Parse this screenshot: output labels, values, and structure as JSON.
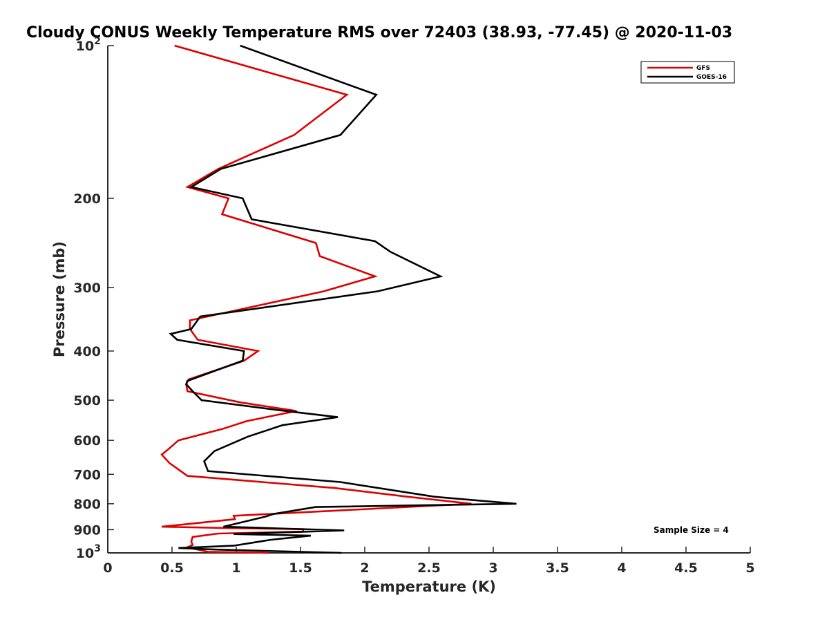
{
  "chart_data": {
    "type": "line",
    "title": "Cloudy CONUS Weekly Temperature RMS over 72403 (38.93, -77.45) @ 2020-11-03",
    "xlabel": "Temperature (K)",
    "ylabel": "Pressure (mb)",
    "xlim": [
      0,
      5
    ],
    "ylim": [
      100,
      1000
    ],
    "yscale": "log",
    "y_reversed": true,
    "x_ticks": [
      0,
      0.5,
      1,
      1.5,
      2,
      2.5,
      3,
      3.5,
      4,
      4.5,
      5
    ],
    "x_tick_labels": [
      "0",
      "0.5",
      "1",
      "1.5",
      "2",
      "2.5",
      "3",
      "3.5",
      "4",
      "4.5",
      "5"
    ],
    "y_ticks": [
      100,
      200,
      300,
      400,
      500,
      600,
      700,
      800,
      900,
      1000
    ],
    "y_tick_labels": [
      {
        "base": "10",
        "exp": "2"
      },
      {
        "base": "200",
        "exp": ""
      },
      {
        "base": "300",
        "exp": ""
      },
      {
        "base": "400",
        "exp": ""
      },
      {
        "base": "500",
        "exp": ""
      },
      {
        "base": "600",
        "exp": ""
      },
      {
        "base": "700",
        "exp": ""
      },
      {
        "base": "800",
        "exp": ""
      },
      {
        "base": "900",
        "exp": ""
      },
      {
        "base": "10",
        "exp": "3"
      }
    ],
    "grid": false,
    "legend_position": "top-right",
    "annotation": "Sample Size = 4",
    "series": [
      {
        "name": "GFS",
        "color": "#dd0000",
        "points": [
          [
            0.52,
            100
          ],
          [
            1.86,
            125
          ],
          [
            1.45,
            150
          ],
          [
            0.86,
            175
          ],
          [
            0.62,
            190
          ],
          [
            0.94,
            200
          ],
          [
            0.89,
            215
          ],
          [
            1.62,
            245
          ],
          [
            1.65,
            260
          ],
          [
            2.08,
            285
          ],
          [
            1.68,
            305
          ],
          [
            0.64,
            348
          ],
          [
            0.64,
            362
          ],
          [
            0.7,
            380
          ],
          [
            1.17,
            400
          ],
          [
            1.06,
            418
          ],
          [
            0.63,
            455
          ],
          [
            0.61,
            465
          ],
          [
            0.62,
            480
          ],
          [
            1.03,
            505
          ],
          [
            1.47,
            525
          ],
          [
            1.08,
            550
          ],
          [
            0.89,
            570
          ],
          [
            0.55,
            600
          ],
          [
            0.47,
            625
          ],
          [
            0.42,
            640
          ],
          [
            0.48,
            665
          ],
          [
            0.62,
            705
          ],
          [
            1.77,
            745
          ],
          [
            2.33,
            775
          ],
          [
            2.83,
            800
          ],
          [
            1.92,
            822
          ],
          [
            0.98,
            845
          ],
          [
            0.99,
            858
          ],
          [
            0.42,
            888
          ],
          [
            0.89,
            893
          ],
          [
            1.52,
            898
          ],
          [
            1.52,
            908
          ],
          [
            0.86,
            916
          ],
          [
            0.66,
            930
          ],
          [
            0.65,
            950
          ],
          [
            0.66,
            965
          ],
          [
            0.62,
            975
          ],
          [
            0.78,
            995
          ],
          [
            1.25,
            1000
          ]
        ]
      },
      {
        "name": "GOES-16",
        "color": "#000000",
        "points": [
          [
            1.03,
            100
          ],
          [
            2.09,
            125
          ],
          [
            1.81,
            150
          ],
          [
            0.88,
            175
          ],
          [
            0.65,
            190
          ],
          [
            1.05,
            200
          ],
          [
            1.12,
            220
          ],
          [
            2.08,
            243
          ],
          [
            2.2,
            255
          ],
          [
            2.59,
            285
          ],
          [
            2.1,
            305
          ],
          [
            0.72,
            342
          ],
          [
            0.65,
            362
          ],
          [
            0.49,
            370
          ],
          [
            0.54,
            380
          ],
          [
            1.06,
            400
          ],
          [
            1.05,
            418
          ],
          [
            0.62,
            458
          ],
          [
            0.61,
            465
          ],
          [
            0.66,
            480
          ],
          [
            0.73,
            500
          ],
          [
            1.38,
            525
          ],
          [
            1.79,
            540
          ],
          [
            1.36,
            560
          ],
          [
            1.09,
            590
          ],
          [
            0.83,
            630
          ],
          [
            0.75,
            660
          ],
          [
            0.78,
            690
          ],
          [
            1.81,
            725
          ],
          [
            2.54,
            775
          ],
          [
            3.18,
            800
          ],
          [
            1.62,
            812
          ],
          [
            1.29,
            838
          ],
          [
            1.23,
            848
          ],
          [
            0.9,
            888
          ],
          [
            1.84,
            903
          ],
          [
            0.98,
            918
          ],
          [
            1.58,
            925
          ],
          [
            1.27,
            942
          ],
          [
            0.98,
            968
          ],
          [
            0.55,
            978
          ],
          [
            0.84,
            985
          ],
          [
            1.82,
            1000
          ]
        ]
      }
    ]
  }
}
